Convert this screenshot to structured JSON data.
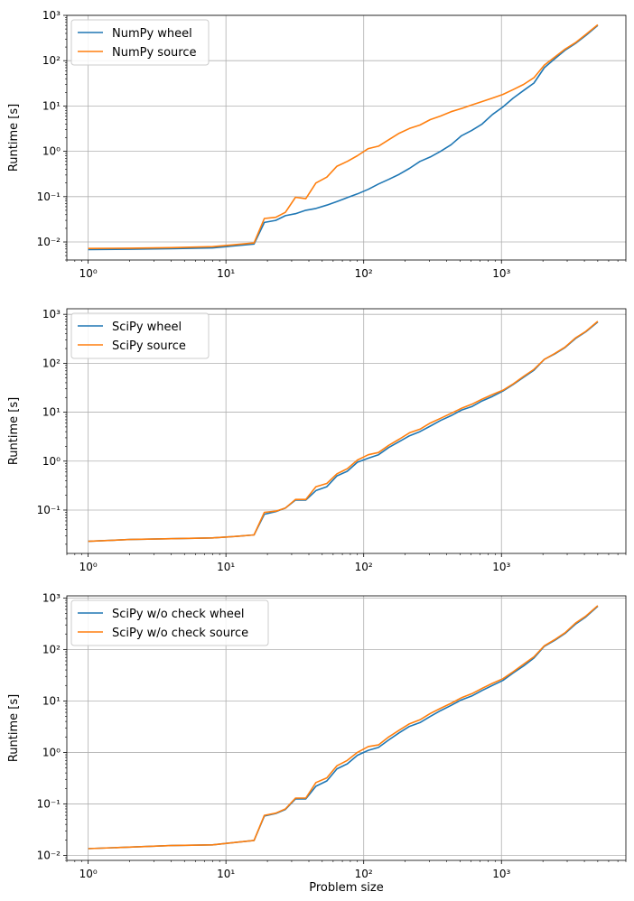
{
  "chart_data": [
    {
      "type": "line",
      "title": "",
      "xlabel": "",
      "ylabel": "Runtime [s]",
      "xscale": "log",
      "yscale": "log",
      "xlim": [
        0.7,
        8000
      ],
      "ylim": [
        0.004,
        1000
      ],
      "x_ticks": [
        {
          "value": 1,
          "label": "10⁰"
        },
        {
          "value": 10,
          "label": "10¹"
        },
        {
          "value": 100,
          "label": "10²"
        },
        {
          "value": 1000,
          "label": "10³"
        }
      ],
      "y_ticks": [
        {
          "value": 0.01,
          "label": "10⁻²"
        },
        {
          "value": 0.1,
          "label": "10⁻¹"
        },
        {
          "value": 1,
          "label": "10⁰"
        },
        {
          "value": 10,
          "label": "10¹"
        },
        {
          "value": 100,
          "label": "10²"
        },
        {
          "value": 1000,
          "label": "10³"
        }
      ],
      "grid": true,
      "legend_position": "top-left",
      "series": [
        {
          "name": "NumPy wheel",
          "color": "#1f77b4",
          "x": [
            1,
            2,
            4,
            8,
            12,
            16,
            19,
            23,
            27,
            32,
            38,
            45,
            54,
            64,
            76,
            90,
            108,
            128,
            152,
            181,
            215,
            256,
            304,
            362,
            431,
            512,
            609,
            724,
            861,
            1024,
            1218,
            1448,
            1722,
            2048,
            2435,
            2896,
            3444,
            4096,
            5000
          ],
          "values": [
            0.0068,
            0.0069,
            0.0071,
            0.0074,
            0.0083,
            0.009,
            0.027,
            0.03,
            0.038,
            0.042,
            0.05,
            0.055,
            0.065,
            0.078,
            0.095,
            0.115,
            0.145,
            0.19,
            0.24,
            0.31,
            0.42,
            0.6,
            0.75,
            1.0,
            1.4,
            2.2,
            2.9,
            4.0,
            6.5,
            9.5,
            15,
            22,
            32,
            70,
            110,
            170,
            240,
            360,
            600
          ]
        },
        {
          "name": "NumPy source",
          "color": "#ff7f0e",
          "x": [
            1,
            2,
            4,
            8,
            12,
            16,
            19,
            23,
            27,
            32,
            38,
            45,
            54,
            64,
            76,
            90,
            108,
            128,
            152,
            181,
            215,
            256,
            304,
            362,
            431,
            512,
            609,
            724,
            861,
            1024,
            1218,
            1448,
            1722,
            2048,
            2435,
            2896,
            3444,
            4096,
            5000
          ],
          "values": [
            0.0072,
            0.0073,
            0.0075,
            0.0079,
            0.0088,
            0.0095,
            0.033,
            0.035,
            0.045,
            0.097,
            0.09,
            0.2,
            0.27,
            0.47,
            0.6,
            0.8,
            1.15,
            1.3,
            1.8,
            2.5,
            3.2,
            3.8,
            5.0,
            6.0,
            7.5,
            8.8,
            10.5,
            12.5,
            15,
            18,
            23,
            30,
            42,
            80,
            120,
            180,
            250,
            380,
            620
          ]
        }
      ]
    },
    {
      "type": "line",
      "title": "",
      "xlabel": "",
      "ylabel": "Runtime [s]",
      "xscale": "log",
      "yscale": "log",
      "xlim": [
        0.7,
        8000
      ],
      "ylim": [
        0.013,
        1300
      ],
      "x_ticks": [
        {
          "value": 1,
          "label": "10⁰"
        },
        {
          "value": 10,
          "label": "10¹"
        },
        {
          "value": 100,
          "label": "10²"
        },
        {
          "value": 1000,
          "label": "10³"
        }
      ],
      "y_ticks": [
        {
          "value": 0.1,
          "label": "10⁻¹"
        },
        {
          "value": 1,
          "label": "10⁰"
        },
        {
          "value": 10,
          "label": "10¹"
        },
        {
          "value": 100,
          "label": "10²"
        },
        {
          "value": 1000,
          "label": "10³"
        }
      ],
      "grid": true,
      "legend_position": "top-left",
      "series": [
        {
          "name": "SciPy wheel",
          "color": "#1f77b4",
          "x": [
            1,
            2,
            4,
            8,
            12,
            16,
            19,
            23,
            27,
            32,
            38,
            45,
            54,
            64,
            76,
            90,
            108,
            128,
            152,
            181,
            215,
            256,
            304,
            362,
            431,
            512,
            609,
            724,
            861,
            1024,
            1218,
            1448,
            1722,
            2048,
            2435,
            2896,
            3444,
            4096,
            5000
          ],
          "values": [
            0.023,
            0.025,
            0.026,
            0.027,
            0.029,
            0.031,
            0.082,
            0.093,
            0.11,
            0.16,
            0.16,
            0.25,
            0.3,
            0.5,
            0.62,
            0.95,
            1.15,
            1.35,
            1.9,
            2.5,
            3.3,
            4.0,
            5.2,
            6.8,
            8.5,
            11,
            13,
            17,
            21,
            27,
            37,
            52,
            72,
            120,
            155,
            210,
            320,
            440,
            700
          ]
        },
        {
          "name": "SciPy source",
          "color": "#ff7f0e",
          "x": [
            1,
            2,
            4,
            8,
            12,
            16,
            19,
            23,
            27,
            32,
            38,
            45,
            54,
            64,
            76,
            90,
            108,
            128,
            152,
            181,
            215,
            256,
            304,
            362,
            431,
            512,
            609,
            724,
            861,
            1024,
            1218,
            1448,
            1722,
            2048,
            2435,
            2896,
            3444,
            4096,
            5000
          ],
          "values": [
            0.023,
            0.025,
            0.026,
            0.027,
            0.029,
            0.031,
            0.09,
            0.095,
            0.11,
            0.165,
            0.165,
            0.3,
            0.35,
            0.55,
            0.7,
            1.05,
            1.35,
            1.5,
            2.1,
            2.8,
            3.8,
            4.5,
            6.0,
            7.5,
            9.5,
            12,
            14.5,
            18.5,
            23,
            28,
            38,
            54,
            75,
            120,
            158,
            215,
            330,
            450,
            720
          ]
        }
      ]
    },
    {
      "type": "line",
      "title": "",
      "xlabel": "Problem size",
      "ylabel": "Runtime [s]",
      "xscale": "log",
      "yscale": "log",
      "xlim": [
        0.7,
        8000
      ],
      "ylim": [
        0.008,
        1100
      ],
      "x_ticks": [
        {
          "value": 1,
          "label": "10⁰"
        },
        {
          "value": 10,
          "label": "10¹"
        },
        {
          "value": 100,
          "label": "10²"
        },
        {
          "value": 1000,
          "label": "10³"
        }
      ],
      "y_ticks": [
        {
          "value": 0.01,
          "label": "10⁻²"
        },
        {
          "value": 0.1,
          "label": "10⁻¹"
        },
        {
          "value": 1,
          "label": "10⁰"
        },
        {
          "value": 10,
          "label": "10¹"
        },
        {
          "value": 100,
          "label": "10²"
        },
        {
          "value": 1000,
          "label": "10³"
        }
      ],
      "grid": true,
      "legend_position": "top-left",
      "series": [
        {
          "name": "SciPy w/o check wheel",
          "color": "#1f77b4",
          "x": [
            1,
            2,
            4,
            8,
            12,
            16,
            19,
            23,
            27,
            32,
            38,
            45,
            54,
            64,
            76,
            90,
            108,
            128,
            152,
            181,
            215,
            256,
            304,
            362,
            431,
            512,
            609,
            724,
            861,
            1024,
            1218,
            1448,
            1722,
            2048,
            2435,
            2896,
            3444,
            4096,
            5000
          ],
          "values": [
            0.0135,
            0.0145,
            0.0155,
            0.016,
            0.018,
            0.0195,
            0.058,
            0.065,
            0.078,
            0.125,
            0.125,
            0.22,
            0.28,
            0.48,
            0.6,
            0.88,
            1.1,
            1.25,
            1.75,
            2.4,
            3.2,
            3.8,
            5.0,
            6.5,
            8.2,
            10.5,
            12.5,
            16,
            20,
            25,
            35,
            48,
            68,
            115,
            150,
            205,
            310,
            430,
            690
          ]
        },
        {
          "name": "SciPy w/o check source",
          "color": "#ff7f0e",
          "x": [
            1,
            2,
            4,
            8,
            12,
            16,
            19,
            23,
            27,
            32,
            38,
            45,
            54,
            64,
            76,
            90,
            108,
            128,
            152,
            181,
            215,
            256,
            304,
            362,
            431,
            512,
            609,
            724,
            861,
            1024,
            1218,
            1448,
            1722,
            2048,
            2435,
            2896,
            3444,
            4096,
            5000
          ],
          "values": [
            0.0135,
            0.0145,
            0.0155,
            0.016,
            0.018,
            0.0195,
            0.06,
            0.066,
            0.08,
            0.13,
            0.13,
            0.26,
            0.32,
            0.55,
            0.7,
            1.0,
            1.3,
            1.4,
            2.0,
            2.7,
            3.6,
            4.3,
            5.7,
            7.2,
            9.0,
            11.5,
            13.8,
            17.5,
            22,
            27,
            37,
            52,
            72,
            118,
            155,
            212,
            325,
            445,
            710
          ]
        }
      ]
    }
  ]
}
